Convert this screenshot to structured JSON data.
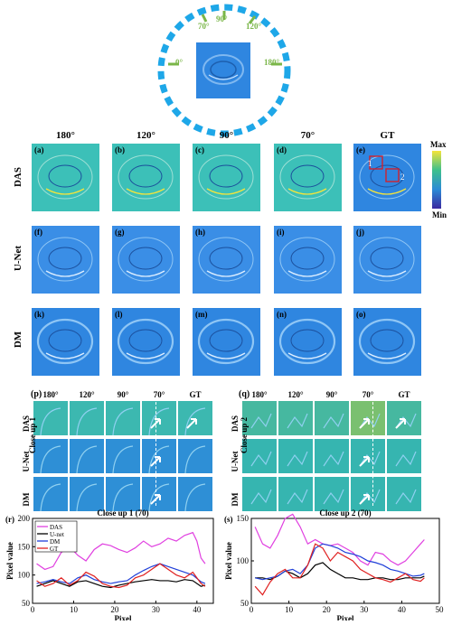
{
  "angles_ring": {
    "a70": "70°",
    "a90": "90°",
    "a120": "120°",
    "a0": "0°",
    "a180": "180°"
  },
  "columns": [
    "180°",
    "120°",
    "90°",
    "70°",
    "GT"
  ],
  "rows": [
    "DAS",
    "U-Net",
    "DM"
  ],
  "panel_labels": [
    "(a)",
    "(b)",
    "(c)",
    "(d)",
    "(e)",
    "(f)",
    "(g)",
    "(h)",
    "(i)",
    "(j)",
    "(k)",
    "(l)",
    "(m)",
    "(n)",
    "(o)"
  ],
  "roi_labels": {
    "r1": "1",
    "r2": "2"
  },
  "colorbar": {
    "max": "Max",
    "min": "Min",
    "colors": [
      "#f5e43a",
      "#3ec08c",
      "#2b8bd6",
      "#3b2aa0"
    ]
  },
  "closeup": {
    "p_label": "(p)",
    "q_label": "(q)",
    "p_title": "Close up 1",
    "q_title": "Close up 2",
    "cols": [
      "180°",
      "120°",
      "90°",
      "70°",
      "GT"
    ],
    "rows": [
      "DAS",
      "U-Net",
      "DM"
    ]
  },
  "plot_r": {
    "panel_label": "(r)",
    "title": "Close up 1 (70)",
    "xlabel": "Pixel",
    "ylabel": "Pixel value"
  },
  "plot_s": {
    "panel_label": "(s)",
    "title": "Close up 2 (70)",
    "xlabel": "Pixel",
    "ylabel": "Pixel value"
  },
  "chart_data": [
    {
      "type": "line",
      "title": "Close up 1 (70)",
      "xlabel": "Pixel",
      "ylabel": "Pixel value",
      "xlim": [
        0,
        44
      ],
      "ylim": [
        50,
        200
      ],
      "xticks": [
        0,
        10,
        20,
        30,
        40
      ],
      "yticks": [
        50,
        100,
        150,
        200
      ],
      "legend_position": "top-left",
      "series": [
        {
          "name": "DAS",
          "color": "#e040e0",
          "x": [
            1,
            3,
            5,
            7,
            9,
            11,
            13,
            15,
            17,
            19,
            21,
            23,
            25,
            27,
            29,
            31,
            33,
            35,
            37,
            39,
            40,
            41,
            42
          ],
          "y": [
            120,
            110,
            115,
            140,
            150,
            135,
            125,
            145,
            155,
            152,
            145,
            140,
            148,
            160,
            150,
            155,
            165,
            160,
            170,
            175,
            160,
            130,
            120
          ]
        },
        {
          "name": "U-net",
          "color": "#000000",
          "x": [
            1,
            3,
            5,
            7,
            9,
            11,
            13,
            15,
            17,
            19,
            21,
            23,
            25,
            27,
            29,
            31,
            33,
            35,
            37,
            39,
            41,
            42
          ],
          "y": [
            80,
            85,
            90,
            85,
            80,
            88,
            90,
            85,
            80,
            78,
            82,
            85,
            88,
            90,
            92,
            90,
            90,
            88,
            92,
            90,
            80,
            82
          ]
        },
        {
          "name": "DM",
          "color": "#1f3fd8",
          "x": [
            1,
            3,
            5,
            7,
            9,
            11,
            13,
            15,
            17,
            19,
            21,
            23,
            25,
            27,
            29,
            31,
            33,
            35,
            37,
            39,
            41,
            42
          ],
          "y": [
            85,
            88,
            92,
            88,
            85,
            95,
            100,
            92,
            88,
            85,
            88,
            90,
            100,
            108,
            115,
            120,
            115,
            110,
            105,
            100,
            88,
            85
          ]
        },
        {
          "name": "GT",
          "color": "#e02020",
          "x": [
            1,
            3,
            5,
            7,
            9,
            11,
            13,
            15,
            17,
            19,
            21,
            23,
            25,
            27,
            29,
            31,
            33,
            35,
            37,
            39,
            41,
            42
          ],
          "y": [
            90,
            80,
            85,
            95,
            82,
            90,
            105,
            98,
            85,
            80,
            78,
            82,
            95,
            100,
            110,
            120,
            110,
            100,
            95,
            105,
            85,
            80
          ]
        }
      ]
    },
    {
      "type": "line",
      "title": "Close up 2 (70)",
      "xlabel": "Pixel",
      "ylabel": "Pixel value",
      "xlim": [
        0,
        50
      ],
      "ylim": [
        50,
        150
      ],
      "xticks": [
        0,
        10,
        20,
        30,
        40,
        50
      ],
      "yticks": [
        50,
        100,
        150
      ],
      "series": [
        {
          "name": "DAS",
          "color": "#e040e0",
          "x": [
            1,
            3,
            5,
            7,
            9,
            11,
            13,
            15,
            17,
            19,
            21,
            23,
            25,
            27,
            29,
            31,
            33,
            35,
            37,
            39,
            41,
            43,
            45,
            46
          ],
          "y": [
            140,
            120,
            115,
            130,
            150,
            155,
            140,
            120,
            125,
            120,
            118,
            120,
            115,
            110,
            100,
            95,
            110,
            108,
            100,
            95,
            100,
            110,
            120,
            125
          ]
        },
        {
          "name": "U-net",
          "color": "#000000",
          "x": [
            1,
            3,
            5,
            7,
            9,
            11,
            13,
            15,
            17,
            19,
            21,
            23,
            25,
            27,
            29,
            31,
            33,
            35,
            37,
            39,
            41,
            43,
            45,
            46
          ],
          "y": [
            80,
            80,
            78,
            82,
            88,
            85,
            80,
            85,
            95,
            98,
            90,
            85,
            80,
            80,
            78,
            78,
            80,
            80,
            78,
            78,
            80,
            80,
            80,
            82
          ]
        },
        {
          "name": "DM",
          "color": "#1f3fd8",
          "x": [
            1,
            3,
            5,
            7,
            9,
            11,
            13,
            15,
            17,
            19,
            21,
            23,
            25,
            27,
            29,
            31,
            33,
            35,
            37,
            39,
            41,
            43,
            45,
            46
          ],
          "y": [
            80,
            78,
            80,
            82,
            88,
            90,
            85,
            95,
            115,
            120,
            118,
            115,
            110,
            108,
            105,
            100,
            98,
            95,
            90,
            88,
            85,
            82,
            83,
            85
          ]
        },
        {
          "name": "GT",
          "color": "#e02020",
          "x": [
            1,
            3,
            5,
            7,
            9,
            11,
            13,
            15,
            17,
            19,
            21,
            23,
            25,
            27,
            29,
            31,
            33,
            35,
            37,
            39,
            41,
            43,
            45,
            46
          ],
          "y": [
            70,
            60,
            75,
            85,
            90,
            80,
            80,
            95,
            120,
            115,
            100,
            110,
            105,
            100,
            90,
            85,
            80,
            78,
            75,
            80,
            85,
            78,
            76,
            80
          ]
        }
      ]
    }
  ]
}
